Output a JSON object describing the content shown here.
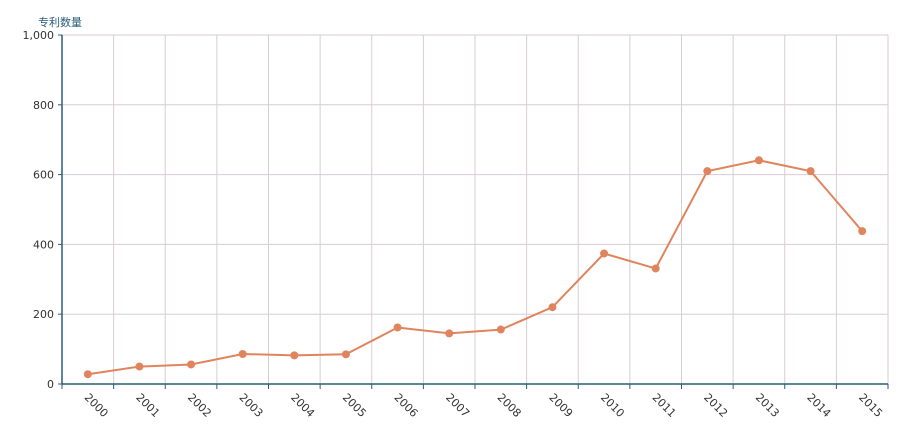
{
  "chart_data": {
    "type": "line",
    "title": "",
    "ylabel": "专利数量",
    "xlabel": "",
    "x": [
      "2000",
      "2001",
      "2002",
      "2003",
      "2004",
      "2005",
      "2006",
      "2007",
      "2008",
      "2009",
      "2010",
      "2011",
      "2012",
      "2013",
      "2014",
      "2015"
    ],
    "series": [
      {
        "values": [
          28,
          50,
          56,
          86,
          82,
          85,
          162,
          145,
          156,
          220,
          374,
          331,
          610,
          641,
          610,
          438
        ]
      }
    ],
    "ylim": [
      0,
      1000
    ],
    "yticks": [
      {
        "value": 0,
        "label": "0"
      },
      {
        "value": 200,
        "label": "200"
      },
      {
        "value": 400,
        "label": "400"
      },
      {
        "value": 600,
        "label": "600"
      },
      {
        "value": 800,
        "label": "800"
      },
      {
        "value": 1000,
        "label": "1,000"
      }
    ],
    "grid": true,
    "colors": {
      "line": "#e0845e",
      "grid": "#d8ccd4",
      "axis": "#2a5d7a"
    }
  }
}
